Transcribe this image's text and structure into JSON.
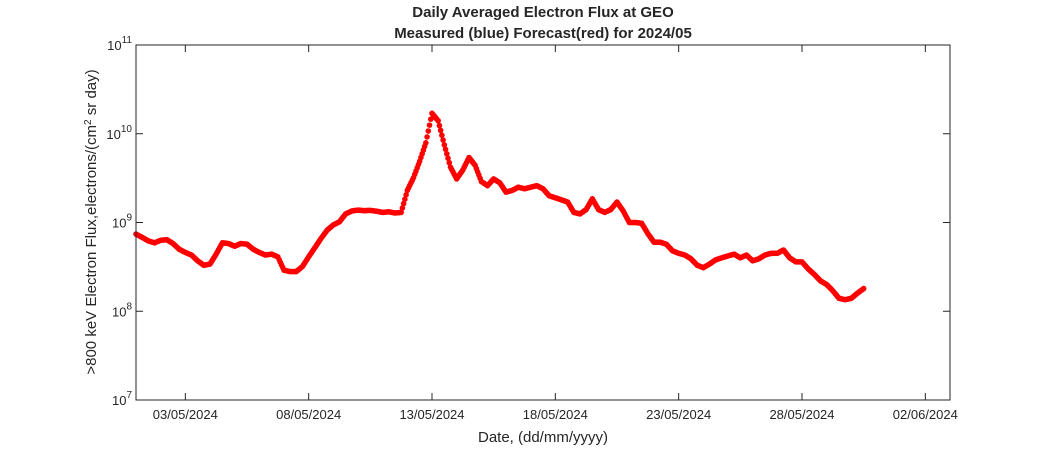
{
  "chart_data": {
    "type": "scatter",
    "title": "Daily Averaged Electron Flux at GEO",
    "subtitle": "Measured (blue) Forecast(red) for 2024/05",
    "xlabel": "Date, (dd/mm/yyyy)",
    "ylabel_prefix": ">800 keV Electron Flux,electrons/(cm",
    "ylabel_sup": "2",
    "ylabel_suffix": " sr day)",
    "y_scale": "log",
    "ylim": [
      10000000.0,
      100000000000.0
    ],
    "xlim": [
      "2024-05-01",
      "2024-06-03"
    ],
    "grid": false,
    "marker_color": "#ff0000",
    "y_ticks": [
      {
        "value": 10000000.0,
        "base": "10",
        "exp": "7"
      },
      {
        "value": 100000000.0,
        "base": "10",
        "exp": "8"
      },
      {
        "value": 1000000000.0,
        "base": "10",
        "exp": "9"
      },
      {
        "value": 10000000000.0,
        "base": "10",
        "exp": "10"
      },
      {
        "value": 100000000000.0,
        "base": "10",
        "exp": "11"
      }
    ],
    "x_ticks": [
      {
        "date": "2024-05-03",
        "label": "03/05/2024"
      },
      {
        "date": "2024-05-08",
        "label": "08/05/2024"
      },
      {
        "date": "2024-05-13",
        "label": "13/05/2024"
      },
      {
        "date": "2024-05-18",
        "label": "18/05/2024"
      },
      {
        "date": "2024-05-23",
        "label": "23/05/2024"
      },
      {
        "date": "2024-05-28",
        "label": "28/05/2024"
      },
      {
        "date": "2024-06-02",
        "label": "02/06/2024"
      }
    ],
    "series": [
      {
        "color": "#ff0000",
        "points": [
          [
            "2024-05-01 00:00",
            740000000.0
          ],
          [
            "2024-05-01 06:00",
            680000000.0
          ],
          [
            "2024-05-01 12:00",
            620000000.0
          ],
          [
            "2024-05-01 18:00",
            590000000.0
          ],
          [
            "2024-05-02 00:00",
            630000000.0
          ],
          [
            "2024-05-02 06:00",
            640000000.0
          ],
          [
            "2024-05-02 12:00",
            580000000.0
          ],
          [
            "2024-05-02 18:00",
            500000000.0
          ],
          [
            "2024-05-03 00:00",
            460000000.0
          ],
          [
            "2024-05-03 06:00",
            430000000.0
          ],
          [
            "2024-05-03 12:00",
            370000000.0
          ],
          [
            "2024-05-03 18:00",
            330000000.0
          ],
          [
            "2024-05-04 00:00",
            340000000.0
          ],
          [
            "2024-05-04 06:00",
            440000000.0
          ],
          [
            "2024-05-04 12:00",
            590000000.0
          ],
          [
            "2024-05-04 18:00",
            580000000.0
          ],
          [
            "2024-05-05 00:00",
            540000000.0
          ],
          [
            "2024-05-05 06:00",
            580000000.0
          ],
          [
            "2024-05-05 12:00",
            570000000.0
          ],
          [
            "2024-05-05 18:00",
            500000000.0
          ],
          [
            "2024-05-06 00:00",
            460000000.0
          ],
          [
            "2024-05-06 06:00",
            430000000.0
          ],
          [
            "2024-05-06 12:00",
            440000000.0
          ],
          [
            "2024-05-06 18:00",
            410000000.0
          ],
          [
            "2024-05-07 00:00",
            290000000.0
          ],
          [
            "2024-05-07 06:00",
            280000000.0
          ],
          [
            "2024-05-07 12:00",
            280000000.0
          ],
          [
            "2024-05-07 18:00",
            320000000.0
          ],
          [
            "2024-05-08 00:00",
            410000000.0
          ],
          [
            "2024-05-08 06:00",
            520000000.0
          ],
          [
            "2024-05-08 12:00",
            660000000.0
          ],
          [
            "2024-05-08 18:00",
            820000000.0
          ],
          [
            "2024-05-09 00:00",
            940000000.0
          ],
          [
            "2024-05-09 06:00",
            1020000000.0
          ],
          [
            "2024-05-09 12:00",
            1250000000.0
          ],
          [
            "2024-05-09 18:00",
            1350000000.0
          ],
          [
            "2024-05-10 00:00",
            1380000000.0
          ],
          [
            "2024-05-10 06:00",
            1360000000.0
          ],
          [
            "2024-05-10 12:00",
            1370000000.0
          ],
          [
            "2024-05-10 18:00",
            1340000000.0
          ],
          [
            "2024-05-11 00:00",
            1300000000.0
          ],
          [
            "2024-05-11 06:00",
            1320000000.0
          ],
          [
            "2024-05-11 12:00",
            1280000000.0
          ],
          [
            "2024-05-11 18:00",
            1300000000.0
          ],
          [
            "2024-05-12 00:00",
            2300000000.0
          ],
          [
            "2024-05-12 06:00",
            3200000000.0
          ],
          [
            "2024-05-12 12:00",
            4900000000.0
          ],
          [
            "2024-05-12 18:00",
            7900000000.0
          ],
          [
            "2024-05-13 00:00",
            17000000000.0
          ],
          [
            "2024-05-13 06:00",
            14000000000.0
          ],
          [
            "2024-05-13 12:00",
            7500000000.0
          ],
          [
            "2024-05-13 18:00",
            4200000000.0
          ],
          [
            "2024-05-14 00:00",
            3100000000.0
          ],
          [
            "2024-05-14 06:00",
            3900000000.0
          ],
          [
            "2024-05-14 12:00",
            5400000000.0
          ],
          [
            "2024-05-14 18:00",
            4400000000.0
          ],
          [
            "2024-05-15 00:00",
            2900000000.0
          ],
          [
            "2024-05-15 06:00",
            2600000000.0
          ],
          [
            "2024-05-15 12:00",
            3100000000.0
          ],
          [
            "2024-05-15 18:00",
            2800000000.0
          ],
          [
            "2024-05-16 00:00",
            2200000000.0
          ],
          [
            "2024-05-16 06:00",
            2300000000.0
          ],
          [
            "2024-05-16 12:00",
            2500000000.0
          ],
          [
            "2024-05-16 18:00",
            2400000000.0
          ],
          [
            "2024-05-17 00:00",
            2500000000.0
          ],
          [
            "2024-05-17 06:00",
            2600000000.0
          ],
          [
            "2024-05-17 12:00",
            2400000000.0
          ],
          [
            "2024-05-17 18:00",
            2000000000.0
          ],
          [
            "2024-05-18 00:00",
            1900000000.0
          ],
          [
            "2024-05-18 06:00",
            1800000000.0
          ],
          [
            "2024-05-18 12:00",
            1700000000.0
          ],
          [
            "2024-05-18 18:00",
            1300000000.0
          ],
          [
            "2024-05-19 00:00",
            1250000000.0
          ],
          [
            "2024-05-19 06:00",
            1400000000.0
          ],
          [
            "2024-05-19 12:00",
            1850000000.0
          ],
          [
            "2024-05-19 18:00",
            1400000000.0
          ],
          [
            "2024-05-20 00:00",
            1300000000.0
          ],
          [
            "2024-05-20 06:00",
            1400000000.0
          ],
          [
            "2024-05-20 12:00",
            1700000000.0
          ],
          [
            "2024-05-20 18:00",
            1350000000.0
          ],
          [
            "2024-05-21 00:00",
            1000000000.0
          ],
          [
            "2024-05-21 06:00",
            1000000000.0
          ],
          [
            "2024-05-21 12:00",
            980000000.0
          ],
          [
            "2024-05-21 18:00",
            750000000.0
          ],
          [
            "2024-05-22 00:00",
            600000000.0
          ],
          [
            "2024-05-22 06:00",
            600000000.0
          ],
          [
            "2024-05-22 12:00",
            570000000.0
          ],
          [
            "2024-05-22 18:00",
            480000000.0
          ],
          [
            "2024-05-23 00:00",
            450000000.0
          ],
          [
            "2024-05-23 06:00",
            430000000.0
          ],
          [
            "2024-05-23 12:00",
            390000000.0
          ],
          [
            "2024-05-23 18:00",
            330000000.0
          ],
          [
            "2024-05-24 00:00",
            310000000.0
          ],
          [
            "2024-05-24 06:00",
            340000000.0
          ],
          [
            "2024-05-24 12:00",
            380000000.0
          ],
          [
            "2024-05-24 18:00",
            400000000.0
          ],
          [
            "2024-05-25 00:00",
            420000000.0
          ],
          [
            "2024-05-25 06:00",
            440000000.0
          ],
          [
            "2024-05-25 12:00",
            400000000.0
          ],
          [
            "2024-05-25 18:00",
            430000000.0
          ],
          [
            "2024-05-26 00:00",
            370000000.0
          ],
          [
            "2024-05-26 06:00",
            390000000.0
          ],
          [
            "2024-05-26 12:00",
            430000000.0
          ],
          [
            "2024-05-26 18:00",
            450000000.0
          ],
          [
            "2024-05-27 00:00",
            450000000.0
          ],
          [
            "2024-05-27 06:00",
            490000000.0
          ],
          [
            "2024-05-27 12:00",
            400000000.0
          ],
          [
            "2024-05-27 18:00",
            360000000.0
          ],
          [
            "2024-05-28 00:00",
            360000000.0
          ],
          [
            "2024-05-28 06:00",
            300000000.0
          ],
          [
            "2024-05-28 12:00",
            260000000.0
          ],
          [
            "2024-05-28 18:00",
            220000000.0
          ],
          [
            "2024-05-29 00:00",
            200000000.0
          ],
          [
            "2024-05-29 06:00",
            170000000.0
          ],
          [
            "2024-05-29 12:00",
            140000000.0
          ],
          [
            "2024-05-29 18:00",
            135000000.0
          ],
          [
            "2024-05-30 00:00",
            140000000.0
          ],
          [
            "2024-05-30 06:00",
            160000000.0
          ],
          [
            "2024-05-30 12:00",
            180000000.0
          ]
        ]
      }
    ]
  }
}
